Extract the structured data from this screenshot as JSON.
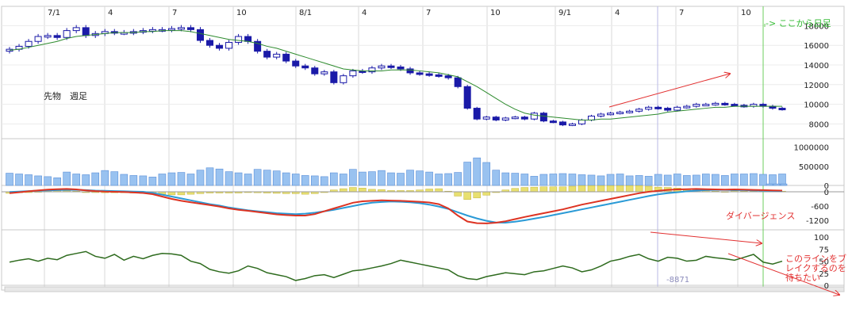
{
  "chart_data": {
    "type": "candlestick-weekly-with-indicators",
    "title": "",
    "xticks": [
      "7/1",
      "4",
      "7",
      "10",
      "8/1",
      "4",
      "7",
      "10",
      "9/1",
      "4",
      "7",
      "10"
    ],
    "price_label": "先物　週足",
    "price_axis_ticks": [
      "18000",
      "16000",
      "14000",
      "12000",
      "10000",
      "8000"
    ],
    "volume_axis_ticks": [
      "1000000",
      "500000",
      "0"
    ],
    "macd_axis_ticks": [
      "0",
      "-600",
      "-1200"
    ],
    "rsi_axis_ticks": [
      "100",
      "75",
      "50",
      "25",
      "0"
    ],
    "ylim_price": [
      6500,
      19000
    ],
    "ylim_volume": [
      0,
      1200000
    ],
    "ylim_macd": [
      -1600,
      200
    ],
    "ylim_rsi": [
      0,
      110
    ],
    "annotation_top": "-> ここから日足",
    "annotation_divergence": "ダイバージェンス",
    "annotation_break": [
      "このラインをブ",
      "レイクするのを",
      "待ちたい"
    ],
    "cursor_value": "-8871",
    "colors": {
      "candle": "#1a1aa8",
      "ma": "#2e8b2e",
      "volume": "#99c2f0",
      "macd": "#dd3322",
      "signal": "#2a9ad6",
      "hist": "#e8e070",
      "rsi": "#2e6b1e",
      "arrow": "#e23030",
      "marker": "#6ecf5e"
    },
    "price": {
      "close": [
        15600,
        15900,
        16400,
        16900,
        17000,
        16800,
        17500,
        17800,
        17000,
        17200,
        17400,
        17300,
        17300,
        17400,
        17500,
        17600,
        17600,
        17700,
        17800,
        17600,
        16500,
        16000,
        15700,
        16300,
        16900,
        16400,
        15400,
        14800,
        15100,
        14400,
        13900,
        13700,
        13100,
        13300,
        12200,
        12900,
        13400,
        13300,
        13700,
        13900,
        13800,
        13600,
        13200,
        13100,
        13000,
        12900,
        12700,
        11800,
        9600,
        8500,
        8700,
        8400,
        8600,
        8700,
        8500,
        9100,
        8300,
        8200,
        7900,
        8000,
        8400,
        8800,
        9000,
        9100,
        9200,
        9300,
        9500,
        9700,
        9600,
        9400,
        9700,
        9800,
        10000,
        10000,
        10100,
        10000,
        9900,
        9800,
        10000,
        9800,
        9600,
        9500
      ],
      "ma": [
        15500,
        15600,
        15800,
        16000,
        16200,
        16400,
        16700,
        16900,
        17000,
        17100,
        17200,
        17300,
        17300,
        17300,
        17400,
        17400,
        17500,
        17500,
        17500,
        17400,
        17200,
        17000,
        16800,
        16600,
        16500,
        16400,
        16200,
        15900,
        15700,
        15400,
        15100,
        14800,
        14500,
        14200,
        13900,
        13600,
        13500,
        13400,
        13400,
        13400,
        13500,
        13500,
        13500,
        13400,
        13300,
        13200,
        13000,
        12800,
        12300,
        11800,
        11200,
        10600,
        10000,
        9500,
        9100,
        8900,
        8800,
        8700,
        8600,
        8500,
        8400,
        8400,
        8500,
        8500,
        8600,
        8700,
        8800,
        8900,
        9000,
        9200,
        9300,
        9400,
        9500,
        9600,
        9700,
        9700,
        9800,
        9800,
        9800,
        9800,
        9800,
        9800
      ]
    },
    "volume": [
      320000,
      300000,
      280000,
      250000,
      230000,
      200000,
      350000,
      300000,
      280000,
      330000,
      390000,
      360000,
      290000,
      260000,
      250000,
      220000,
      300000,
      330000,
      340000,
      300000,
      400000,
      460000,
      430000,
      360000,
      330000,
      300000,
      420000,
      400000,
      380000,
      330000,
      300000,
      260000,
      250000,
      230000,
      330000,
      300000,
      420000,
      350000,
      360000,
      390000,
      330000,
      320000,
      400000,
      380000,
      350000,
      300000,
      310000,
      340000,
      610000,
      720000,
      600000,
      400000,
      330000,
      320000,
      300000,
      240000,
      290000,
      300000,
      310000,
      300000,
      280000,
      270000,
      250000,
      290000,
      300000,
      250000,
      260000,
      240000,
      290000,
      270000,
      300000,
      260000,
      270000,
      300000,
      290000,
      260000,
      300000,
      300000,
      310000,
      290000,
      280000,
      300000
    ],
    "macd": [
      -60,
      -20,
      20,
      60,
      90,
      110,
      120,
      100,
      60,
      30,
      10,
      0,
      -10,
      -30,
      -50,
      -100,
      -200,
      -300,
      -380,
      -440,
      -500,
      -560,
      -620,
      -700,
      -760,
      -800,
      -850,
      -900,
      -950,
      -980,
      -1000,
      -1000,
      -940,
      -820,
      -700,
      -580,
      -460,
      -400,
      -380,
      -360,
      -370,
      -380,
      -400,
      -420,
      -450,
      -520,
      -700,
      -1000,
      -1250,
      -1320,
      -1330,
      -1300,
      -1240,
      -1150,
      -1060,
      -980,
      -900,
      -820,
      -740,
      -640,
      -540,
      -460,
      -380,
      -300,
      -220,
      -140,
      -60,
      0,
      40,
      80,
      100,
      110,
      120,
      110,
      100,
      90,
      100,
      90,
      80,
      70,
      60,
      50
    ],
    "signal": [
      -10,
      10,
      30,
      50,
      60,
      70,
      80,
      80,
      70,
      50,
      40,
      30,
      20,
      10,
      0,
      -50,
      -120,
      -200,
      -280,
      -360,
      -440,
      -520,
      -580,
      -660,
      -720,
      -780,
      -820,
      -860,
      -900,
      -920,
      -940,
      -920,
      -880,
      -820,
      -760,
      -680,
      -600,
      -520,
      -460,
      -430,
      -410,
      -420,
      -440,
      -480,
      -540,
      -620,
      -720,
      -860,
      -1000,
      -1120,
      -1220,
      -1290,
      -1300,
      -1260,
      -1200,
      -1130,
      -1060,
      -980,
      -900,
      -820,
      -740,
      -660,
      -580,
      -500,
      -420,
      -340,
      -260,
      -180,
      -110,
      -60,
      -20,
      20,
      50,
      70,
      80,
      80,
      70,
      70,
      60,
      50,
      40,
      30
    ],
    "rsi": [
      48,
      52,
      55,
      50,
      56,
      53,
      62,
      66,
      70,
      60,
      56,
      64,
      52,
      60,
      55,
      62,
      66,
      65,
      62,
      50,
      45,
      33,
      28,
      25,
      30,
      40,
      35,
      26,
      22,
      18,
      10,
      14,
      20,
      22,
      16,
      23,
      30,
      32,
      36,
      40,
      45,
      52,
      48,
      44,
      40,
      36,
      32,
      20,
      14,
      12,
      18,
      22,
      26,
      24,
      22,
      28,
      30,
      35,
      40,
      36,
      28,
      32,
      40,
      50,
      54,
      60,
      64,
      55,
      50,
      58,
      56,
      50,
      52,
      60,
      57,
      55,
      52,
      58,
      64,
      48,
      44,
      50
    ]
  }
}
